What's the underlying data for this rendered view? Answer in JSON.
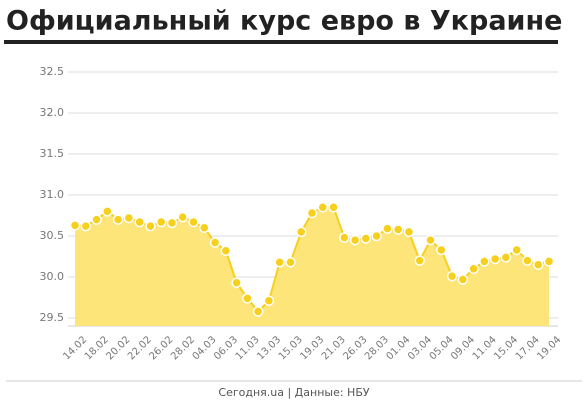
{
  "chart_data": {
    "type": "area",
    "title": "Официальный курс евро в Украине",
    "footer": "Сегодня.ua | Данные: НБУ",
    "categories": [
      "14.02",
      null,
      "18.02",
      null,
      "20.02",
      null,
      "22.02",
      null,
      "26.02",
      null,
      "28.02",
      null,
      "04.03",
      null,
      "06.03",
      null,
      "11.03",
      null,
      "13.03",
      null,
      "15.03",
      null,
      "19.03",
      null,
      "21.03",
      null,
      "26.03",
      null,
      "28.03",
      null,
      "01.04",
      null,
      "03.04",
      null,
      "05.04",
      null,
      "09.04",
      null,
      "11.04",
      null,
      "15.04",
      null,
      "17.04",
      null,
      "19.04"
    ],
    "values": [
      30.63,
      30.62,
      30.7,
      30.8,
      30.7,
      30.72,
      30.67,
      30.62,
      30.67,
      30.66,
      30.73,
      30.67,
      30.6,
      30.42,
      30.32,
      29.93,
      29.74,
      29.58,
      29.71,
      30.18,
      30.18,
      30.55,
      30.78,
      30.85,
      30.85,
      30.48,
      30.45,
      30.47,
      30.5,
      30.59,
      30.58,
      30.55,
      30.2,
      30.45,
      30.33,
      30.01,
      29.97,
      30.1,
      30.19,
      30.22,
      30.24,
      30.33,
      30.2,
      30.15,
      30.19
    ],
    "color": "#f7cf1d",
    "fill_color": "#fde57a",
    "ylim": [
      29.5,
      32.5
    ],
    "yticks": [
      29.5,
      {
        "value": 30,
        "label": "30.0"
      },
      30.5,
      {
        "value": 31,
        "label": "31.0"
      },
      31.5,
      {
        "value": 32,
        "label": "32.0"
      },
      32.5
    ],
    "grid": true
  }
}
